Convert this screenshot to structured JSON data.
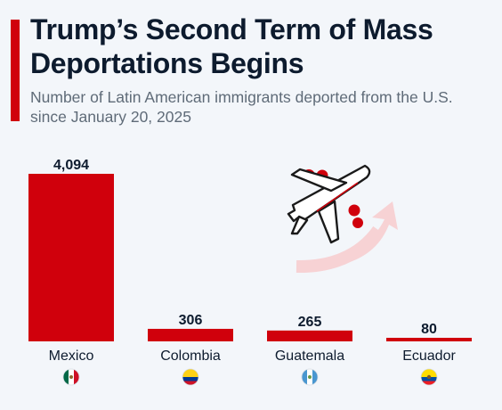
{
  "title": "Trump’s Second Term of Mass Deportations Begins",
  "subtitle": "Number of Latin American immigrants deported from the U.S. since January 20, 2025",
  "colors": {
    "bar": "#d0000c",
    "text": "#0d1b2e",
    "subtitle": "#5f6b78",
    "background": "#f3f6fa",
    "illustration_arrow": "#f7d2d4"
  },
  "illustration": {
    "icon": "airplane-with-passengers-icon"
  },
  "chart_data": {
    "type": "bar",
    "title": "Trump’s Second Term of Mass Deportations Begins",
    "subtitle": "Number of Latin American immigrants deported from the U.S. since January 20, 2025",
    "categories": [
      "Mexico",
      "Colombia",
      "Guatemala",
      "Ecuador"
    ],
    "values": [
      4094,
      306,
      265,
      80
    ],
    "value_labels": [
      "4,094",
      "306",
      "265",
      "80"
    ],
    "flags": [
      "mexico-flag-icon",
      "colombia-flag-icon",
      "guatemala-flag-icon",
      "ecuador-flag-icon"
    ],
    "xlabel": "",
    "ylabel": "",
    "ylim": [
      0,
      4094
    ],
    "grid": false,
    "legend": "none"
  }
}
